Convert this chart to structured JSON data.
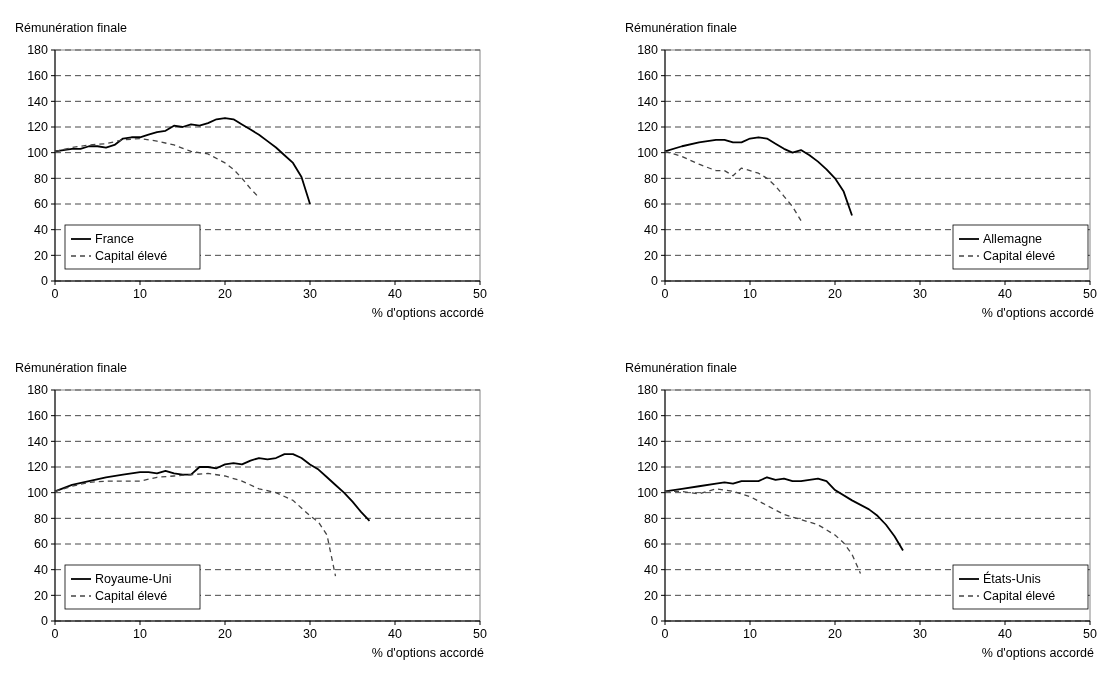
{
  "chart_data": [
    {
      "type": "line",
      "ylabel": "Rémunération finale",
      "xlabel": "% d'options accordé",
      "xlim": [
        0,
        50
      ],
      "xticks": [
        0,
        10,
        20,
        30,
        40,
        50
      ],
      "ylim": [
        0,
        180
      ],
      "yticks": [
        0,
        20,
        40,
        60,
        80,
        100,
        120,
        140,
        160,
        180
      ],
      "grid": "y",
      "legend": "bottom left",
      "series": [
        {
          "name": "France",
          "color": "#000000",
          "line_style": "solid",
          "x": [
            0,
            1,
            2,
            3,
            4,
            5,
            6,
            7,
            8,
            9,
            10,
            11,
            12,
            13,
            14,
            15,
            16,
            17,
            18,
            19,
            20,
            21,
            22,
            23,
            24,
            25,
            26,
            27,
            28,
            29,
            30
          ],
          "values": [
            101,
            102,
            103,
            103,
            105,
            105,
            104,
            106,
            111,
            112,
            112,
            114,
            116,
            117,
            121,
            120,
            122,
            121,
            123,
            126,
            127,
            126,
            122,
            118,
            114,
            109,
            104,
            98,
            92,
            81,
            60
          ]
        },
        {
          "name": "Capital élevé",
          "color": "#444444",
          "line_style": "dashed",
          "x": [
            0,
            2,
            4,
            6,
            8,
            10,
            12,
            14,
            16,
            18,
            20,
            21,
            22,
            23,
            24
          ],
          "values": [
            101,
            104,
            106,
            107,
            110,
            111,
            109,
            106,
            101,
            99,
            92,
            87,
            80,
            72,
            65
          ]
        }
      ]
    },
    {
      "type": "line",
      "ylabel": "Rémunération finale",
      "xlabel": "% d'options accordé",
      "xlim": [
        0,
        50
      ],
      "xticks": [
        0,
        10,
        20,
        30,
        40,
        50
      ],
      "ylim": [
        0,
        180
      ],
      "yticks": [
        0,
        20,
        40,
        60,
        80,
        100,
        120,
        140,
        160,
        180
      ],
      "grid": "y",
      "legend": "bottom right",
      "series": [
        {
          "name": "Allemagne",
          "color": "#000000",
          "line_style": "solid",
          "x": [
            0,
            2,
            4,
            6,
            7,
            8,
            9,
            10,
            11,
            12,
            13,
            14,
            15,
            16,
            17,
            18,
            19,
            20,
            21,
            22
          ],
          "values": [
            101,
            105,
            108,
            110,
            110,
            108,
            108,
            111,
            112,
            111,
            107,
            103,
            100,
            102,
            98,
            93,
            87,
            80,
            70,
            51
          ]
        },
        {
          "name": "Capital élevé",
          "color": "#444444",
          "line_style": "dashed",
          "x": [
            0,
            2,
            4,
            6,
            7,
            8,
            9,
            10,
            11,
            12,
            13,
            14,
            15,
            16
          ],
          "values": [
            101,
            97,
            91,
            86,
            86,
            82,
            88,
            86,
            84,
            80,
            74,
            66,
            58,
            47
          ]
        }
      ]
    },
    {
      "type": "line",
      "ylabel": "Rémunération finale",
      "xlabel": "% d'options accordé",
      "xlim": [
        0,
        50
      ],
      "xticks": [
        0,
        10,
        20,
        30,
        40,
        50
      ],
      "ylim": [
        0,
        180
      ],
      "yticks": [
        0,
        20,
        40,
        60,
        80,
        100,
        120,
        140,
        160,
        180
      ],
      "grid": "y",
      "legend": "bottom left",
      "series": [
        {
          "name": "Royaume-Uni",
          "color": "#000000",
          "line_style": "solid",
          "x": [
            0,
            2,
            4,
            6,
            8,
            10,
            11,
            12,
            13,
            14,
            15,
            16,
            17,
            18,
            19,
            20,
            21,
            22,
            23,
            24,
            25,
            26,
            27,
            28,
            29,
            30,
            31,
            32,
            33,
            34,
            35,
            36,
            37
          ],
          "values": [
            101,
            106,
            109,
            112,
            114,
            116,
            116,
            115,
            117,
            115,
            114,
            114,
            120,
            120,
            119,
            122,
            123,
            122,
            125,
            127,
            126,
            127,
            130,
            130,
            127,
            122,
            118,
            112,
            106,
            100,
            93,
            85,
            78
          ]
        },
        {
          "name": "Capital élevé",
          "color": "#444444",
          "line_style": "dashed",
          "x": [
            0,
            2,
            4,
            6,
            8,
            10,
            12,
            14,
            16,
            18,
            20,
            22,
            24,
            26,
            28,
            30,
            31,
            32,
            33
          ],
          "values": [
            101,
            105,
            108,
            109,
            109,
            109,
            112,
            113,
            114,
            115,
            113,
            109,
            103,
            100,
            94,
            82,
            77,
            67,
            35
          ]
        }
      ]
    },
    {
      "type": "line",
      "ylabel": "Rémunération finale",
      "xlabel": "% d'options accordé",
      "xlim": [
        0,
        50
      ],
      "xticks": [
        0,
        10,
        20,
        30,
        40,
        50
      ],
      "ylim": [
        0,
        180
      ],
      "yticks": [
        0,
        20,
        40,
        60,
        80,
        100,
        120,
        140,
        160,
        180
      ],
      "grid": "y",
      "legend": "bottom right",
      "series": [
        {
          "name": "États-Unis",
          "color": "#000000",
          "line_style": "solid",
          "x": [
            0,
            2,
            4,
            6,
            7,
            8,
            9,
            10,
            11,
            12,
            13,
            14,
            15,
            16,
            17,
            18,
            19,
            20,
            22,
            24,
            25,
            26,
            27,
            28
          ],
          "values": [
            101,
            103,
            105,
            107,
            108,
            107,
            109,
            109,
            109,
            112,
            110,
            111,
            109,
            109,
            110,
            111,
            109,
            102,
            94,
            87,
            82,
            75,
            66,
            55
          ]
        },
        {
          "name": "Capital élevé",
          "color": "#444444",
          "line_style": "dashed",
          "x": [
            0,
            2,
            4,
            6,
            7,
            8,
            10,
            12,
            14,
            16,
            18,
            20,
            21,
            22,
            23
          ],
          "values": [
            101,
            101,
            99,
            103,
            102,
            101,
            97,
            90,
            83,
            79,
            75,
            67,
            61,
            52,
            37
          ]
        }
      ]
    }
  ]
}
